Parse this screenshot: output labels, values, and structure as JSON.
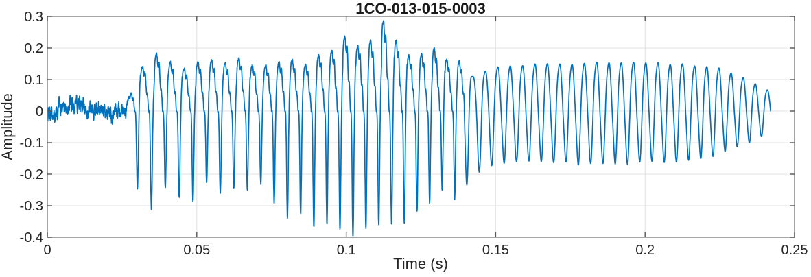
{
  "figure": {
    "background": "#ffffff"
  },
  "chart_data": {
    "type": "line",
    "title": "1CO-013-015-0003",
    "xlabel": "Time (s)",
    "ylabel": "Amplitude",
    "xlim": [
      0,
      0.25
    ],
    "ylim": [
      -0.4,
      0.3
    ],
    "xticks": [
      0,
      0.05,
      0.1,
      0.15,
      0.2,
      0.25
    ],
    "xtick_labels": [
      "0",
      "0.05",
      "0.1",
      "0.15",
      "0.2",
      "0.25"
    ],
    "yticks": [
      -0.4,
      -0.3,
      -0.2,
      -0.1,
      0,
      0.1,
      0.2,
      0.3
    ],
    "ytick_labels": [
      "-0.4",
      "-0.3",
      "-0.2",
      "-0.1",
      "0",
      "0.1",
      "0.2",
      "0.3"
    ],
    "grid": true,
    "legend": false,
    "colors": {
      "line": "#0072BD",
      "grid": "#e2e2e2",
      "axis_box": "#808080",
      "tick": "#555555",
      "text": "#262626",
      "title_text": "#1a1a1a"
    },
    "line_width": 1.7,
    "signal_time_range": [
      0,
      0.242
    ],
    "waveform": {
      "sample_rate_hz": 20000,
      "clip": [
        -0.3955,
        0.2865
      ],
      "segments": [
        {
          "kind": "noise",
          "t0": 0.0,
          "t1": 0.0265,
          "band": 0.03,
          "peak": 0.05,
          "wander": [
            [
              43,
              0.011
            ],
            [
              19,
              0.007
            ]
          ]
        },
        {
          "kind": "voiced",
          "t0": 0.0265,
          "t1": 0.1395,
          "f0_start": 212,
          "f0_end": 240,
          "harmonic_amps": [
            1,
            0.58,
            0.38,
            0.24,
            0.14,
            0.08
          ],
          "harmonic_phases": [
            0,
            1.1,
            2.4,
            3.9,
            5.1,
            0.7
          ],
          "jitter_upper": [
            0.84,
            0.32
          ],
          "jitter_lower": [
            0.86,
            0.28
          ],
          "sample_noise": 0.004,
          "upper_env": [
            [
              0.0265,
              0.02
            ],
            [
              0.028,
              0.06
            ],
            [
              0.03,
              0.15
            ],
            [
              0.033,
              0.16
            ],
            [
              0.038,
              0.155
            ],
            [
              0.044,
              0.16
            ],
            [
              0.05,
              0.15
            ],
            [
              0.056,
              0.145
            ],
            [
              0.062,
              0.15
            ],
            [
              0.068,
              0.15
            ],
            [
              0.074,
              0.16
            ],
            [
              0.08,
              0.19
            ],
            [
              0.086,
              0.17
            ],
            [
              0.092,
              0.19
            ],
            [
              0.098,
              0.21
            ],
            [
              0.103,
              0.23
            ],
            [
              0.107,
              0.27
            ],
            [
              0.111,
              0.255
            ],
            [
              0.118,
              0.215
            ],
            [
              0.125,
              0.19
            ],
            [
              0.132,
              0.17
            ],
            [
              0.1395,
              0.14
            ]
          ],
          "lower_env": [
            [
              0.0265,
              0.02
            ],
            [
              0.028,
              0.08
            ],
            [
              0.03,
              0.22
            ],
            [
              0.0335,
              0.29
            ],
            [
              0.037,
              0.26
            ],
            [
              0.042,
              0.275
            ],
            [
              0.047,
              0.255
            ],
            [
              0.052,
              0.27
            ],
            [
              0.057,
              0.25
            ],
            [
              0.062,
              0.265
            ],
            [
              0.067,
              0.245
            ],
            [
              0.072,
              0.27
            ],
            [
              0.077,
              0.285
            ],
            [
              0.082,
              0.34
            ],
            [
              0.087,
              0.38
            ],
            [
              0.092,
              0.39
            ],
            [
              0.097,
              0.39
            ],
            [
              0.101,
              0.37
            ],
            [
              0.105,
              0.345
            ],
            [
              0.109,
              0.33
            ],
            [
              0.113,
              0.34
            ],
            [
              0.118,
              0.325
            ],
            [
              0.125,
              0.3
            ],
            [
              0.132,
              0.27
            ],
            [
              0.1395,
              0.235
            ]
          ]
        },
        {
          "kind": "tone",
          "t0": 0.1395,
          "t1": 0.242,
          "f0_start": 240,
          "f0_end": 247,
          "harmonic_amps": [
            1,
            0.16,
            0.05
          ],
          "harmonic_phases": [
            0,
            1.3,
            2.1
          ],
          "jitter_upper": [
            0.97,
            0.06
          ],
          "jitter_lower": [
            0.97,
            0.06
          ],
          "onset_boost": 1.6,
          "onset_tau": 0.004,
          "sample_noise": 0,
          "upper_env": [
            [
              0.1395,
              0.125
            ],
            [
              0.144,
              0.125
            ],
            [
              0.15,
              0.14
            ],
            [
              0.158,
              0.147
            ],
            [
              0.168,
              0.15
            ],
            [
              0.178,
              0.152
            ],
            [
              0.19,
              0.152
            ],
            [
              0.2,
              0.15
            ],
            [
              0.21,
              0.147
            ],
            [
              0.218,
              0.144
            ],
            [
              0.224,
              0.137
            ],
            [
              0.229,
              0.12
            ],
            [
              0.234,
              0.1
            ],
            [
              0.238,
              0.082
            ],
            [
              0.242,
              0.062
            ]
          ],
          "lower_env": [
            [
              0.1395,
              0.21
            ],
            [
              0.144,
              0.185
            ],
            [
              0.15,
              0.165
            ],
            [
              0.158,
              0.158
            ],
            [
              0.168,
              0.163
            ],
            [
              0.178,
              0.168
            ],
            [
              0.19,
              0.168
            ],
            [
              0.2,
              0.163
            ],
            [
              0.21,
              0.158
            ],
            [
              0.218,
              0.15
            ],
            [
              0.224,
              0.14
            ],
            [
              0.229,
              0.123
            ],
            [
              0.234,
              0.103
            ],
            [
              0.238,
              0.085
            ],
            [
              0.242,
              0.062
            ]
          ]
        }
      ]
    }
  }
}
